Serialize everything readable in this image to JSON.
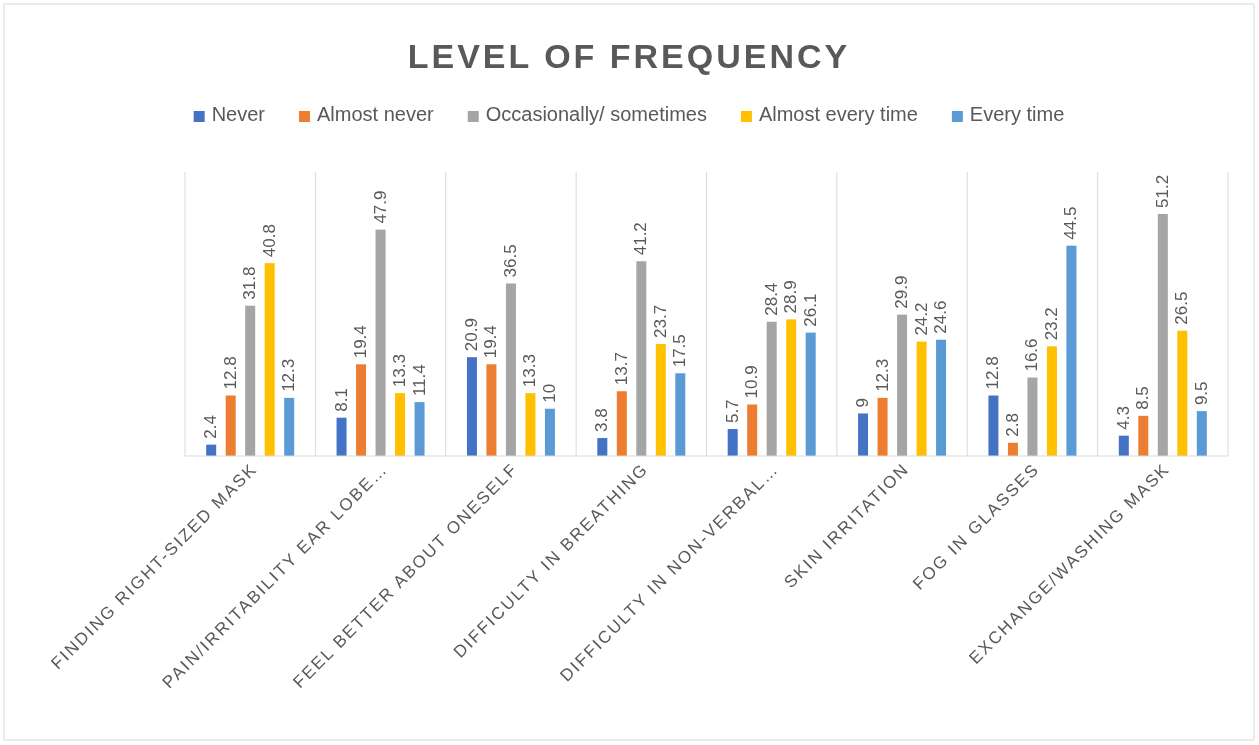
{
  "chart_data": {
    "type": "bar",
    "title": "LEVEL OF FREQUENCY",
    "categories": [
      "FINDING RIGHT-SIZED MASK",
      "PAIN/IRRITABILITY EAR LOBE…",
      "FEEL BETTER ABOUT ONESELF",
      "DIFFICULTY IN BREATHING",
      "DIFFICULTY IN NON-VERBAL…",
      "SKIN IRRITATION",
      "FOG IN GLASSES",
      "EXCHANGE/WASHING MASK"
    ],
    "series": [
      {
        "name": "Never",
        "color": "#4472c4",
        "values": [
          2.4,
          8.1,
          20.9,
          3.8,
          5.7,
          9,
          12.8,
          4.3
        ]
      },
      {
        "name": "Almost never",
        "color": "#ed7d31",
        "values": [
          12.8,
          19.4,
          19.4,
          13.7,
          10.9,
          12.3,
          2.8,
          8.5
        ]
      },
      {
        "name": "Occasionally/ sometimes",
        "color": "#a5a5a5",
        "values": [
          31.8,
          47.9,
          36.5,
          41.2,
          28.4,
          29.9,
          16.6,
          51.2
        ]
      },
      {
        "name": "Almost every time",
        "color": "#ffc000",
        "values": [
          40.8,
          13.3,
          13.3,
          23.7,
          28.9,
          24.2,
          23.2,
          26.5
        ]
      },
      {
        "name": "Every time",
        "color": "#5b9bd5",
        "values": [
          12.3,
          11.4,
          10,
          17.5,
          26.1,
          24.6,
          44.5,
          9.5
        ]
      }
    ],
    "data_labels": true,
    "legend": "top"
  }
}
